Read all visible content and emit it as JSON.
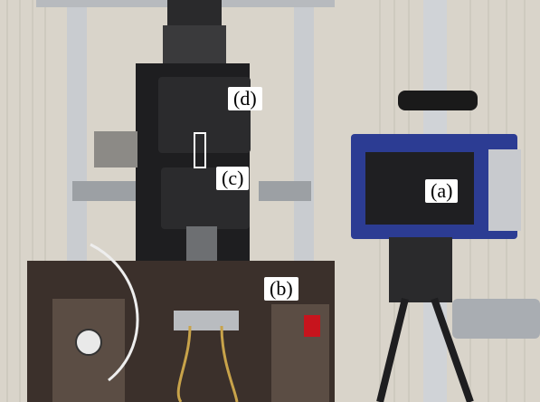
{
  "figure": {
    "labels": {
      "a": "(a)",
      "b": "(b)",
      "c": "(c)",
      "d": "(d)"
    },
    "colors": {
      "wall": "#d9d4ca",
      "frame_column": "#c9ccd0",
      "machine_black": "#1b1b1d",
      "camera_blue": "#2c3c93",
      "warning_red": "#c7141d",
      "specimen_outline": "#ffffff"
    }
  }
}
